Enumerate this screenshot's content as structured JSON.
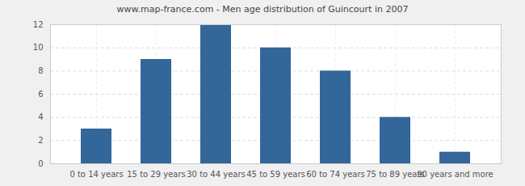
{
  "chart_data": {
    "type": "bar",
    "title": "www.map-france.com - Men age distribution of Guincourt in 2007",
    "categories": [
      "0 to 14 years",
      "15 to 29 years",
      "30 to 44 years",
      "45 to 59 years",
      "60 to 74 years",
      "75 to 89 years",
      "90 years and more"
    ],
    "values": [
      3,
      9,
      12,
      10,
      8,
      4,
      1
    ],
    "color": "#336699",
    "ylim": [
      0,
      12
    ],
    "yticks": [
      0,
      2,
      4,
      6,
      8,
      10,
      12
    ],
    "grid": true
  }
}
